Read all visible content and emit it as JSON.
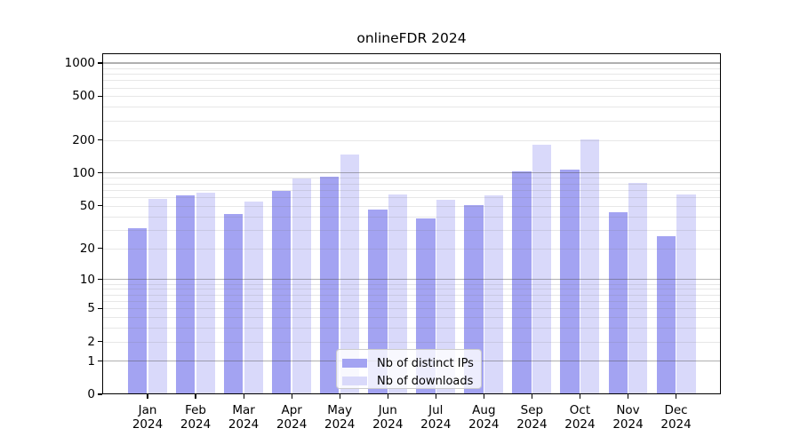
{
  "title": "onlineFDR 2024",
  "chart_data": {
    "type": "bar",
    "title": "onlineFDR 2024",
    "categories": [
      "Jan 2024",
      "Feb 2024",
      "Mar 2024",
      "Apr 2024",
      "May 2024",
      "Jun 2024",
      "Jul 2024",
      "Aug 2024",
      "Sep 2024",
      "Oct 2024",
      "Nov 2024",
      "Dec 2024"
    ],
    "x_tick_month": [
      "Jan",
      "Feb",
      "Mar",
      "Apr",
      "May",
      "Jun",
      "Jul",
      "Aug",
      "Sep",
      "Oct",
      "Nov",
      "Dec"
    ],
    "x_tick_year": "2024",
    "series": [
      {
        "name": "Nb of distinct IPs",
        "color": "#a3a3f2",
        "values": [
          31,
          62,
          42,
          69,
          92,
          46,
          38,
          51,
          103,
          107,
          44,
          26
        ]
      },
      {
        "name": "Nb of downloads",
        "color": "#d9d9fa",
        "values": [
          58,
          66,
          55,
          90,
          148,
          64,
          57,
          63,
          182,
          201,
          81,
          64
        ]
      }
    ],
    "y_scale": "log10(value+1)",
    "ylim": [
      0,
      1230
    ],
    "y_ticks": [
      0,
      1,
      2,
      5,
      10,
      20,
      50,
      100,
      200,
      500,
      1000
    ],
    "y_major_gridlines": [
      1,
      10,
      100,
      1000
    ],
    "y_minor_gridlines": [
      2,
      3,
      4,
      5,
      6,
      7,
      8,
      9,
      20,
      30,
      40,
      50,
      60,
      70,
      80,
      90,
      200,
      300,
      400,
      500,
      600,
      700,
      800,
      900
    ],
    "grid": true,
    "legend": {
      "position": "lower center",
      "entries": [
        "Nb of distinct IPs",
        "Nb of downloads"
      ]
    },
    "colors": {
      "axis": "#000000",
      "background": "#ffffff",
      "major_grid": "#b0b0b0",
      "minor_grid": "#e6e6e6"
    }
  }
}
